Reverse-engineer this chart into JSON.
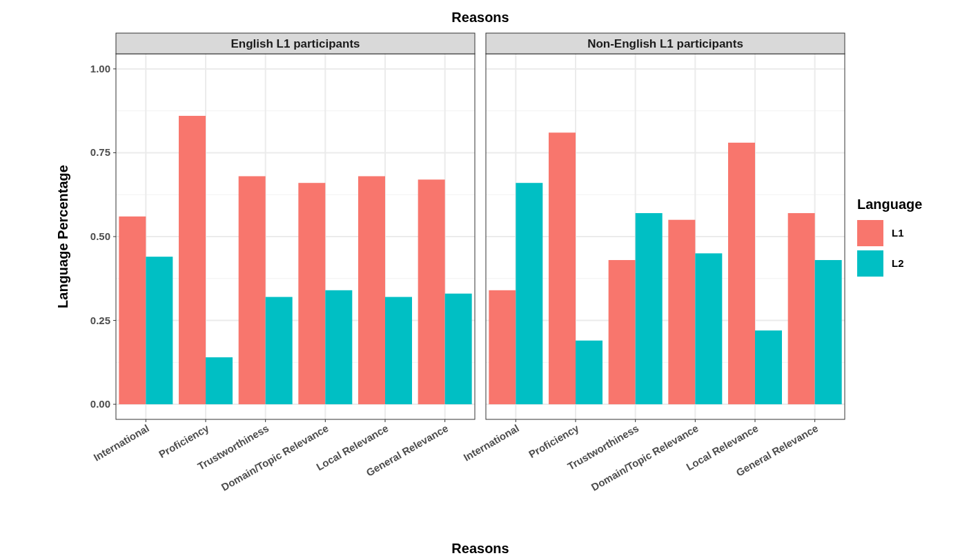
{
  "chart_data": [
    {
      "type": "bar",
      "title": "English L1 participants",
      "annotations": [
        "Reasons"
      ],
      "xlabel": "Reasons",
      "ylabel": "Language Percentage",
      "categories": [
        "International",
        "Proficiency",
        "Trustworthiness",
        "Domain/Topic Relevance",
        "Local Relevance",
        "General Relevance"
      ],
      "series": [
        {
          "color": "#f8766d",
          "values": [
            0.56,
            0.86,
            0.68,
            0.66,
            0.68,
            0.67
          ]
        },
        {
          "color": "#00bfc4",
          "values": [
            0.44,
            0.14,
            0.32,
            0.34,
            0.32,
            0.33
          ]
        }
      ],
      "ylim": [
        -0.045,
        1.045
      ],
      "yticks": [
        {
          "value": 0,
          "label": "0.00"
        },
        {
          "value": 0.25,
          "label": "0.25"
        },
        {
          "value": 0.5,
          "label": "0.50"
        },
        {
          "value": 0.75,
          "label": "0.75"
        },
        {
          "value": 1,
          "label": "1.00"
        }
      ],
      "grid": true
    },
    {
      "type": "bar",
      "title": "Non-English L1 participants",
      "legend_title": "Language",
      "legend": "right",
      "tick_labels": "x",
      "categories": [
        "International",
        "Proficiency",
        "Trustworthiness",
        "Domain/Topic Relevance",
        "Local Relevance",
        "General Relevance"
      ],
      "series": [
        {
          "name": "L1",
          "color": "#f8766d",
          "values": [
            0.34,
            0.81,
            0.43,
            0.55,
            0.78,
            0.57
          ]
        },
        {
          "name": "L2",
          "color": "#00bfc4",
          "values": [
            0.66,
            0.19,
            0.57,
            0.45,
            0.22,
            0.43
          ]
        }
      ],
      "ylim": [
        -0.045,
        1.045
      ],
      "yticks": [
        0,
        0.25,
        0.5,
        0.75,
        1
      ],
      "grid": true
    }
  ]
}
